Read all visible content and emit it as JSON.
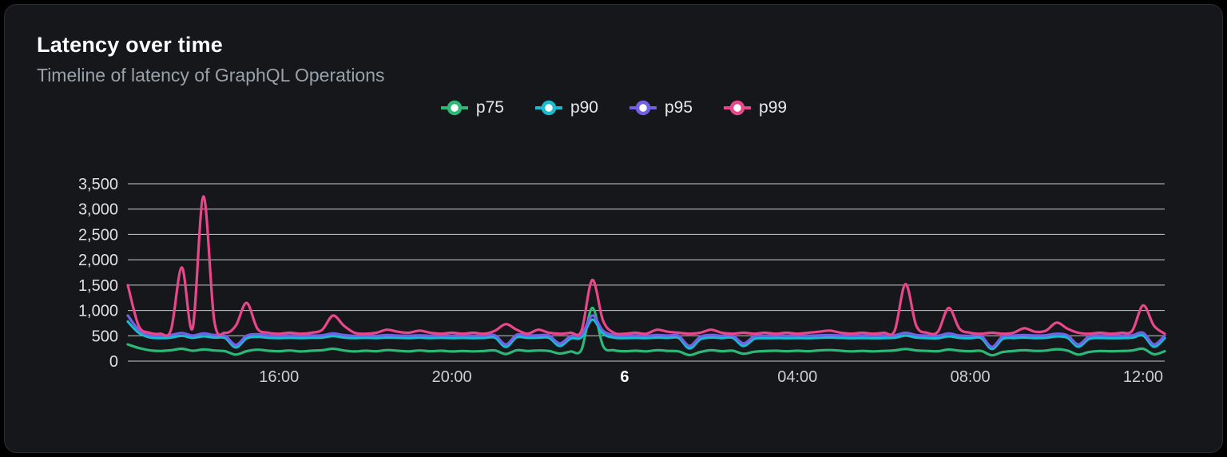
{
  "panel": {
    "title": "Latency over time",
    "subtitle": "Timeline of latency of GraphQL Operations"
  },
  "style": {
    "background": "#15171b",
    "border": "#2c2f35",
    "grid_color": "#c9cbce",
    "y_label_color": "#dfe0e2",
    "x_label_color": "#ccced2",
    "x_label_emphasis_color": "#ffffff",
    "legend_marker_fill": "#ffffff"
  },
  "chart_data": {
    "type": "line",
    "title": "Latency over time",
    "subtitle": "Timeline of latency of GraphQL Operations",
    "ylabel": "",
    "xlabel": "",
    "ylim": [
      0,
      3500
    ],
    "grid_step": 500,
    "grid": true,
    "legend_position": "top-center",
    "x_count": 97,
    "x_ticks": [
      {
        "index": 14,
        "label": "16:00",
        "emphasis": false
      },
      {
        "index": 30,
        "label": "20:00",
        "emphasis": false
      },
      {
        "index": 46,
        "label": "6",
        "emphasis": true
      },
      {
        "index": 62,
        "label": "04:00",
        "emphasis": false
      },
      {
        "index": 78,
        "label": "08:00",
        "emphasis": false
      },
      {
        "index": 94,
        "label": "12:00",
        "emphasis": false
      }
    ],
    "y_tick_values": [
      0,
      500,
      1000,
      1500,
      2000,
      2500,
      3000,
      3500
    ],
    "series": [
      {
        "name": "p75",
        "color": "#2cb877",
        "values": [
          330,
          260,
          215,
          200,
          215,
          245,
          205,
          230,
          210,
          195,
          130,
          195,
          225,
          205,
          195,
          210,
          190,
          205,
          215,
          245,
          210,
          190,
          205,
          195,
          218,
          205,
          192,
          210,
          195,
          205,
          190,
          200,
          192,
          200,
          210,
          140,
          215,
          200,
          210,
          200,
          150,
          190,
          225,
          1050,
          300,
          215,
          195,
          205,
          192,
          215,
          202,
          192,
          120,
          180,
          215,
          195,
          205,
          145,
          185,
          198,
          205,
          195,
          205,
          195,
          212,
          218,
          205,
          192,
          202,
          192,
          202,
          212,
          240,
          212,
          202,
          195,
          228,
          205,
          195,
          202,
          115,
          180,
          200,
          215,
          202,
          208,
          235,
          208,
          130,
          180,
          200,
          195,
          200,
          210,
          245,
          135,
          195
        ]
      },
      {
        "name": "p90",
        "color": "#18bccf",
        "values": [
          780,
          560,
          470,
          455,
          465,
          500,
          460,
          490,
          465,
          455,
          270,
          450,
          480,
          460,
          455,
          460,
          455,
          460,
          465,
          495,
          465,
          455,
          460,
          455,
          465,
          460,
          455,
          462,
          455,
          460,
          455,
          458,
          455,
          458,
          462,
          280,
          470,
          458,
          462,
          458,
          300,
          448,
          470,
          820,
          540,
          465,
          455,
          458,
          455,
          465,
          458,
          455,
          250,
          430,
          465,
          455,
          458,
          300,
          440,
          452,
          456,
          452,
          456,
          452,
          460,
          465,
          458,
          452,
          456,
          452,
          456,
          462,
          505,
          465,
          456,
          452,
          490,
          458,
          452,
          456,
          240,
          440,
          456,
          465,
          456,
          460,
          488,
          460,
          285,
          440,
          456,
          452,
          456,
          462,
          505,
          285,
          455
        ]
      },
      {
        "name": "p95",
        "color": "#7161e6",
        "values": [
          900,
          620,
          515,
          500,
          515,
          555,
          505,
          545,
          515,
          500,
          320,
          500,
          530,
          505,
          500,
          505,
          500,
          505,
          510,
          545,
          515,
          500,
          505,
          500,
          515,
          505,
          500,
          510,
          500,
          505,
          500,
          505,
          500,
          505,
          510,
          330,
          520,
          505,
          510,
          505,
          350,
          495,
          520,
          900,
          600,
          515,
          500,
          505,
          500,
          515,
          505,
          500,
          300,
          480,
          515,
          500,
          505,
          350,
          490,
          500,
          505,
          500,
          505,
          500,
          510,
          515,
          505,
          500,
          505,
          500,
          505,
          510,
          560,
          515,
          505,
          500,
          545,
          505,
          500,
          505,
          280,
          490,
          505,
          515,
          505,
          510,
          540,
          510,
          330,
          490,
          505,
          500,
          505,
          510,
          560,
          330,
          505
        ]
      },
      {
        "name": "p99",
        "color": "#e8478b",
        "values": [
          1500,
          700,
          560,
          540,
          620,
          1850,
          650,
          3250,
          800,
          560,
          700,
          1150,
          640,
          560,
          540,
          560,
          540,
          560,
          620,
          900,
          700,
          560,
          540,
          560,
          620,
          580,
          560,
          600,
          560,
          540,
          560,
          540,
          560,
          540,
          600,
          730,
          620,
          540,
          620,
          560,
          540,
          560,
          600,
          1600,
          800,
          560,
          540,
          560,
          540,
          620,
          580,
          560,
          540,
          560,
          620,
          560,
          540,
          560,
          540,
          560,
          540,
          560,
          540,
          560,
          580,
          600,
          560,
          540,
          560,
          540,
          560,
          600,
          1520,
          700,
          560,
          580,
          1050,
          640,
          560,
          540,
          560,
          540,
          560,
          650,
          580,
          600,
          760,
          640,
          560,
          540,
          560,
          540,
          560,
          600,
          1100,
          700,
          540
        ]
      }
    ]
  }
}
